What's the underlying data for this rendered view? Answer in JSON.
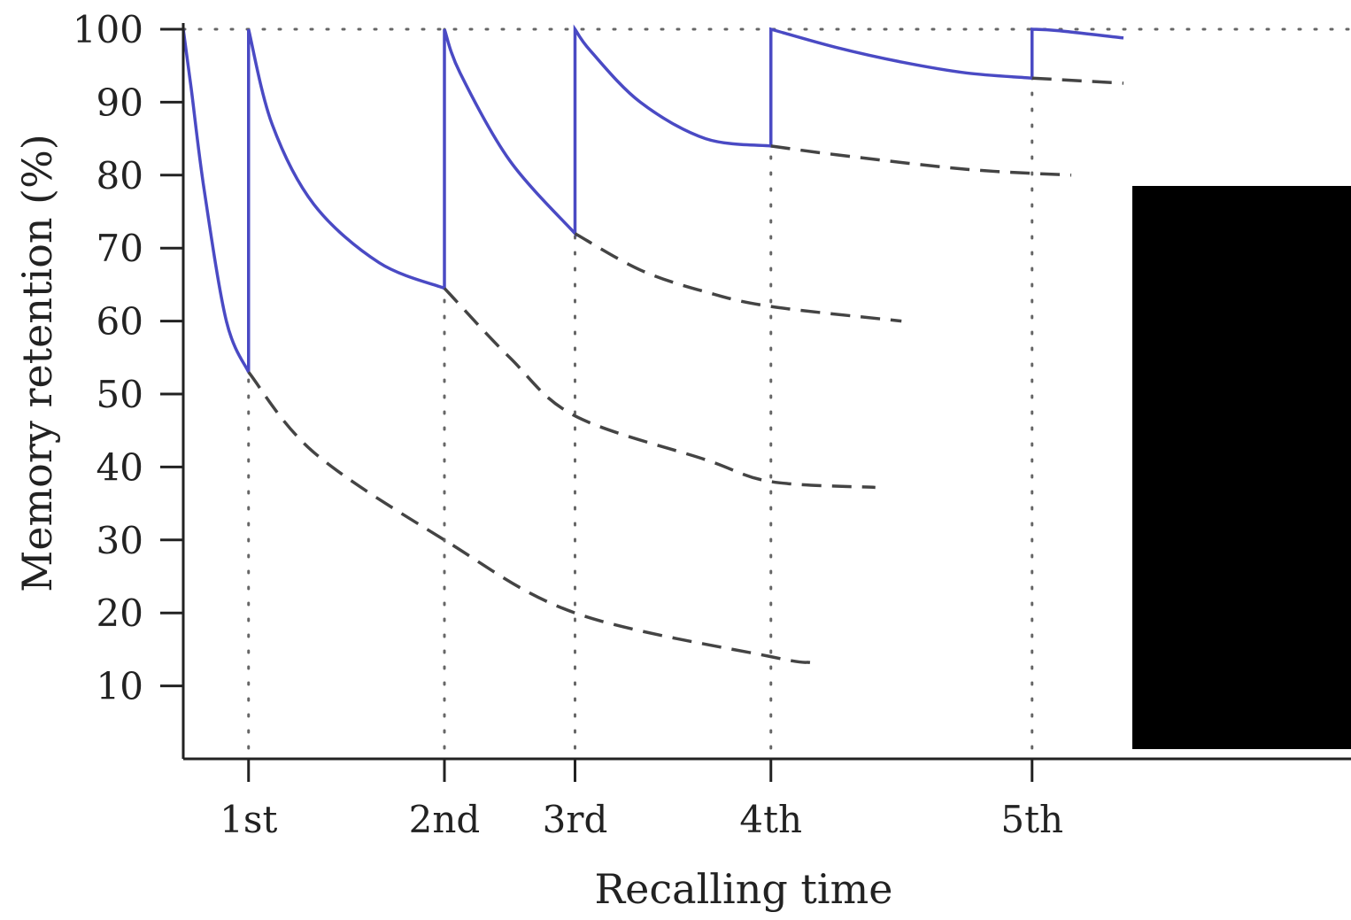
{
  "chart_data": {
    "type": "line",
    "title": "",
    "xlabel": "Recalling time",
    "ylabel": "Memory retention (%)",
    "ylim": [
      0,
      100
    ],
    "yticks": [
      10,
      20,
      30,
      40,
      50,
      60,
      70,
      80,
      90,
      100
    ],
    "x_categories": [
      "1st",
      "2nd",
      "3rd",
      "4th",
      "5th"
    ],
    "grid": "dotted vertical lines at each recall and a dotted line at 100%",
    "legend": "none",
    "colors": {
      "retention_curve": "#4a4ac4",
      "forgetting_curve": "#444444",
      "axis": "#222222"
    },
    "series": [
      {
        "style": "solid",
        "points": [
          [
            0.0,
            100
          ],
          [
            0.06,
            92
          ],
          [
            0.16,
            78
          ],
          [
            0.33,
            60
          ],
          [
            0.5,
            53
          ],
          [
            0.5,
            100
          ],
          [
            0.68,
            87
          ],
          [
            1.0,
            76
          ],
          [
            1.5,
            68
          ],
          [
            2.0,
            64.5
          ],
          [
            2.0,
            100
          ],
          [
            2.12,
            94
          ],
          [
            2.5,
            82
          ],
          [
            3.0,
            72
          ],
          [
            3.0,
            100
          ],
          [
            3.12,
            97
          ],
          [
            3.5,
            90
          ],
          [
            4.0,
            85
          ],
          [
            4.5,
            84
          ],
          [
            4.5,
            100
          ],
          [
            5.0,
            97.5
          ],
          [
            5.5,
            95.5
          ],
          [
            6.0,
            94
          ],
          [
            6.5,
            93.3
          ],
          [
            6.5,
            100
          ],
          [
            6.7,
            99.8
          ],
          [
            7.2,
            98.8
          ]
        ]
      },
      {
        "style": "dashed",
        "points": [
          [
            0.5,
            53
          ],
          [
            1.0,
            42
          ],
          [
            2.0,
            30
          ],
          [
            3.0,
            20
          ],
          [
            4.5,
            14
          ],
          [
            4.8,
            13.2
          ]
        ]
      },
      {
        "style": "dashed",
        "points": [
          [
            2.0,
            64.5
          ],
          [
            2.5,
            55
          ],
          [
            3.0,
            47
          ],
          [
            4.0,
            41
          ],
          [
            4.5,
            38
          ],
          [
            5.3,
            37.2
          ]
        ]
      },
      {
        "style": "dashed",
        "points": [
          [
            3.0,
            72
          ],
          [
            3.5,
            67
          ],
          [
            4.0,
            64
          ],
          [
            4.5,
            62
          ],
          [
            5.5,
            60
          ]
        ]
      },
      {
        "style": "dashed",
        "points": [
          [
            4.5,
            84
          ],
          [
            5.0,
            82.8
          ],
          [
            6.0,
            80.8
          ],
          [
            6.8,
            80
          ]
        ]
      },
      {
        "style": "dashed",
        "points": [
          [
            6.5,
            93.3
          ],
          [
            7.2,
            92.6
          ]
        ]
      }
    ],
    "recall_events": [
      {
        "label": "1st",
        "x": 0.5
      },
      {
        "label": "2nd",
        "x": 2.0
      },
      {
        "label": "3rd",
        "x": 3.0
      },
      {
        "label": "4th",
        "x": 4.5
      },
      {
        "label": "5th",
        "x": 6.5
      }
    ]
  }
}
